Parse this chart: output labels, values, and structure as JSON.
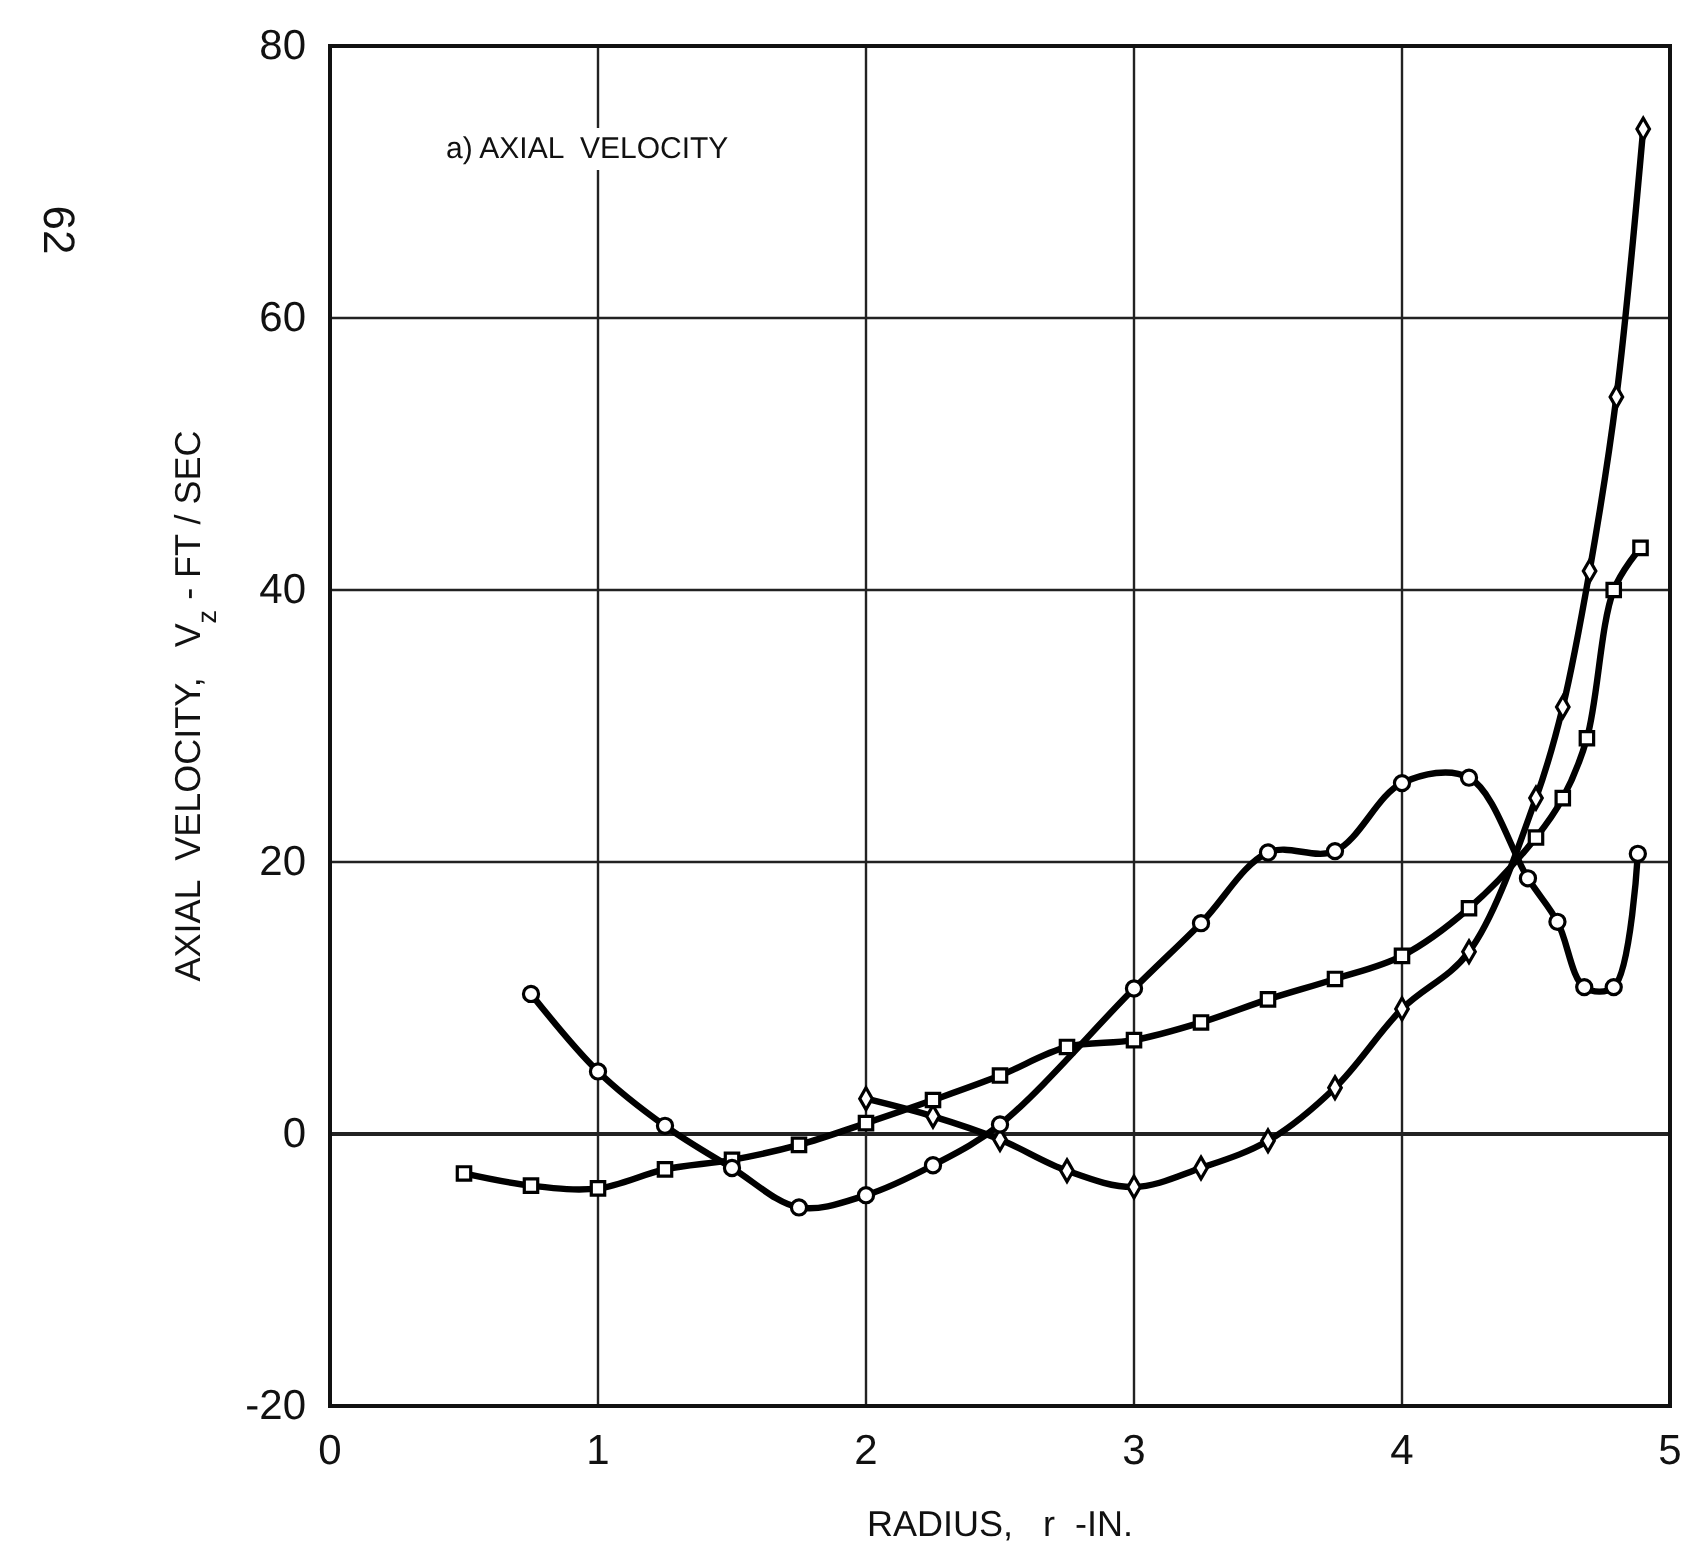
{
  "chart_data": {
    "type": "line",
    "title": "a) AXIAL  VELOCITY",
    "xlabel": "RADIUS,   r  -IN.",
    "ylabel": "AXIAL  VELOCITY,   V$_{z}$ - FT / SEC",
    "annotations": [
      "62"
    ],
    "xlim": [
      0,
      5
    ],
    "xticks": [
      0,
      1,
      2,
      3,
      4,
      5
    ],
    "ylim": [
      -20,
      80
    ],
    "yticks": [
      -20,
      0,
      20,
      40,
      60,
      80
    ],
    "grid": true,
    "series": [
      {
        "color": "#000000",
        "marker": "circle",
        "x": [
          0.75,
          1.0,
          1.25,
          1.5,
          1.75,
          2.0,
          2.25,
          2.5,
          3.0,
          3.25,
          3.5,
          3.75,
          4.0,
          4.25,
          4.47,
          4.58,
          4.68,
          4.79,
          4.88
        ],
        "values": [
          10.3,
          4.6,
          0.6,
          -2.5,
          -5.4,
          -4.5,
          -2.3,
          0.7,
          10.7,
          15.5,
          20.7,
          20.8,
          25.8,
          26.2,
          18.8,
          15.6,
          10.8,
          10.8,
          20.6
        ]
      },
      {
        "color": "#000000",
        "marker": "square",
        "x": [
          0.5,
          0.75,
          1.0,
          1.25,
          1.5,
          1.75,
          2.0,
          2.25,
          2.5,
          2.75,
          3.0,
          3.25,
          3.5,
          3.75,
          4.0,
          4.25,
          4.5,
          4.6,
          4.69,
          4.79,
          4.89
        ],
        "values": [
          -2.9,
          -3.8,
          -4.0,
          -2.6,
          -1.9,
          -0.8,
          0.8,
          2.5,
          4.3,
          6.4,
          6.9,
          8.2,
          9.9,
          11.4,
          13.1,
          16.6,
          21.8,
          24.7,
          29.1,
          40.0,
          43.1
        ]
      },
      {
        "color": "#000000",
        "marker": "diamond",
        "x": [
          2.0,
          2.25,
          2.5,
          2.75,
          3.0,
          3.25,
          3.5,
          3.75,
          4.0,
          4.25,
          4.5,
          4.6,
          4.7,
          4.8,
          4.9
        ],
        "values": [
          2.6,
          1.3,
          -0.4,
          -2.7,
          -3.9,
          -2.5,
          -0.5,
          3.4,
          9.2,
          13.4,
          24.7,
          31.4,
          41.4,
          54.2,
          73.9
        ]
      }
    ]
  }
}
